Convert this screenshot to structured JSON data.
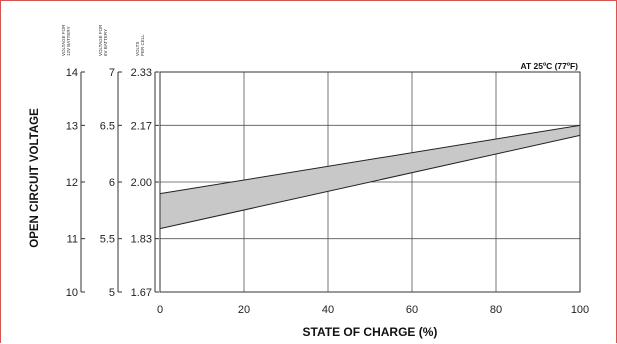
{
  "chart_data": {
    "type": "area",
    "annotation": "AT 25ºC (77ºF)",
    "xlabel": "STATE OF CHARGE (%)",
    "ylabel": "OPEN CIRCUIT VOLTAGE",
    "xlim": [
      0,
      100
    ],
    "ylim": [
      1.67,
      2.33
    ],
    "x_ticks": [
      "0",
      "20",
      "40",
      "60",
      "80",
      "100"
    ],
    "x_tick_values": [
      0,
      20,
      40,
      60,
      80,
      100
    ],
    "y_tick_values": [
      1.67,
      1.83,
      2.0,
      2.17,
      2.33
    ],
    "y_axes": [
      {
        "header": [
          "VOLTAGE FOR",
          "12V BATTERY"
        ],
        "ticks": [
          "10",
          "11",
          "12",
          "13",
          "14"
        ]
      },
      {
        "header": [
          "VOLTAGE FOR",
          "6V BATTERY"
        ],
        "ticks": [
          "5",
          "5.5",
          "6",
          "6.5",
          "7"
        ]
      },
      {
        "header": [
          "VOLTS",
          "PER CELL"
        ],
        "ticks": [
          "1.67",
          "1.83",
          "2.00",
          "2.17",
          "2.33"
        ]
      }
    ],
    "grid": true,
    "series": [
      {
        "values": [
          [
            0,
            1.965
          ],
          [
            100,
            2.17
          ]
        ]
      },
      {
        "values": [
          [
            0,
            1.86
          ],
          [
            100,
            2.14
          ]
        ]
      }
    ],
    "fill_color": "#c8c8c8"
  }
}
